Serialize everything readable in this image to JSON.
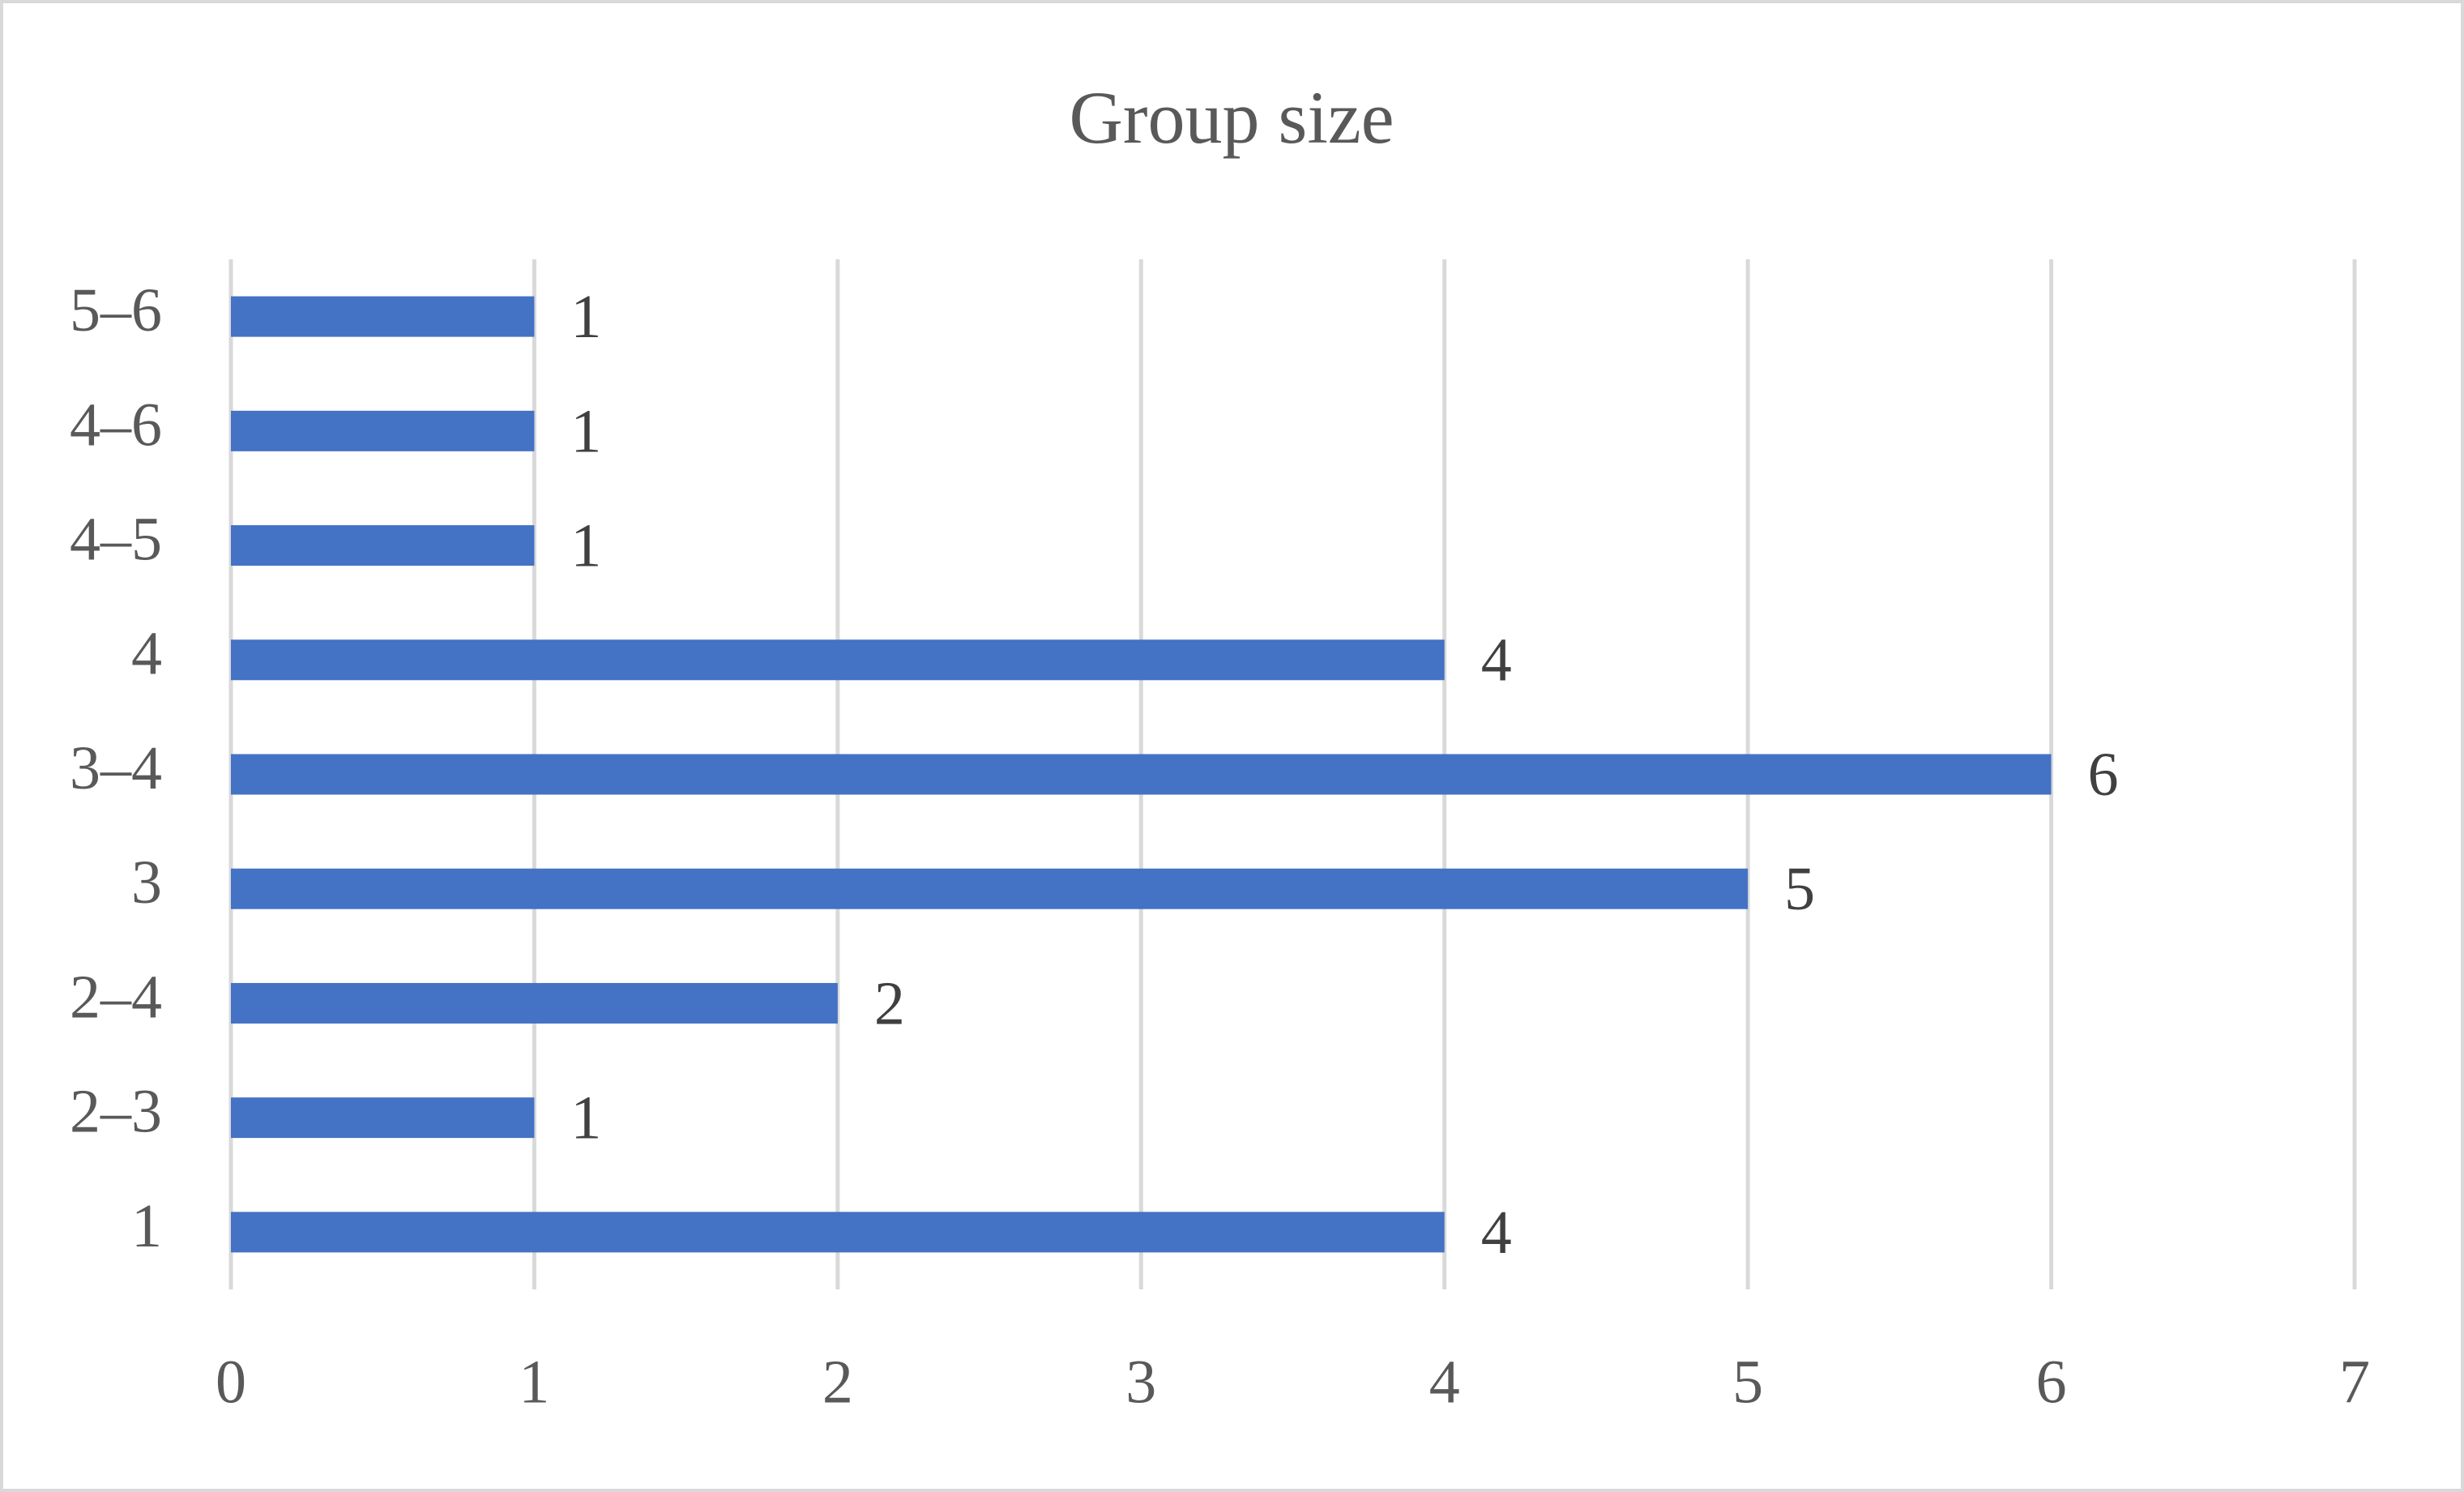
{
  "chart_data": {
    "type": "barh",
    "title": "Group size",
    "categories": [
      "1",
      "2–3",
      "2–4",
      "3",
      "3–4",
      "4",
      "4–5",
      "4–6",
      "5–6"
    ],
    "values": [
      4,
      1,
      2,
      5,
      6,
      4,
      1,
      1,
      1
    ],
    "color": "#4472c4",
    "xlim": [
      0,
      7
    ],
    "xticks": [
      0,
      1,
      2,
      3,
      4,
      5,
      6,
      7
    ],
    "grid": true
  }
}
